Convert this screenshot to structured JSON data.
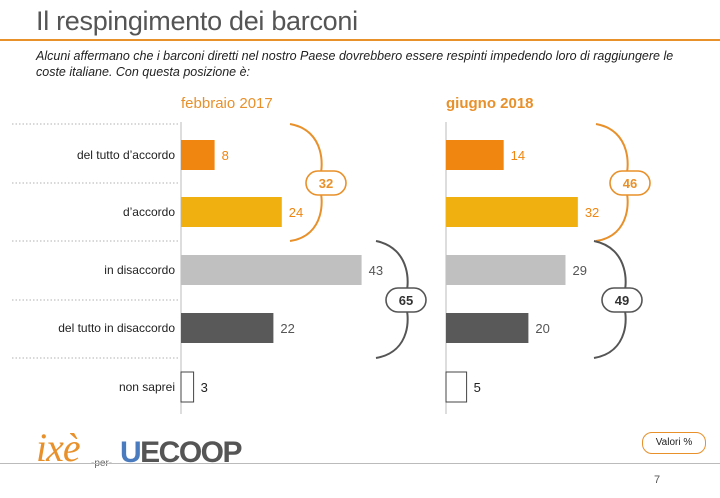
{
  "header": {
    "title": "Il respingimento dei barconi",
    "subtitle": "Alcuni affermano che i barconi diretti nel nostro Paese dovrebbero essere respinti impedendo loro di raggiungere le coste italiane. Con questa posizione è:"
  },
  "chart_data": {
    "type": "bar",
    "orientation": "horizontal",
    "categories": [
      "del tutto d’accordo",
      "d’accordo",
      "in disaccordo",
      "del tutto in disaccordo",
      "non saprei"
    ],
    "series": [
      {
        "name": "febbraio 2017",
        "values": [
          8,
          24,
          43,
          22,
          3
        ],
        "agree_total": "32",
        "disagree_total": "65"
      },
      {
        "name": "giugno 2018",
        "values": [
          14,
          32,
          29,
          20,
          5
        ],
        "agree_total": "46",
        "disagree_total": "49"
      }
    ],
    "bar_colors": [
      "#f0850f",
      "#f0b010",
      "#c0c0c0",
      "#595959",
      "#ffffff"
    ],
    "label_colors": [
      "#f0850f",
      "#f0850f",
      "#555555",
      "#555555",
      "#222222"
    ],
    "accent_color": "#e8902a",
    "grey_bracket_color": "#555555",
    "xlim": [
      0,
      50
    ]
  },
  "footer": {
    "logo_ixe": "ixè",
    "logo_per": "per",
    "logo_uecoop_u": "U",
    "logo_uecoop_rest": "ECOOP",
    "valori": "Valori %",
    "page_number": "7"
  }
}
